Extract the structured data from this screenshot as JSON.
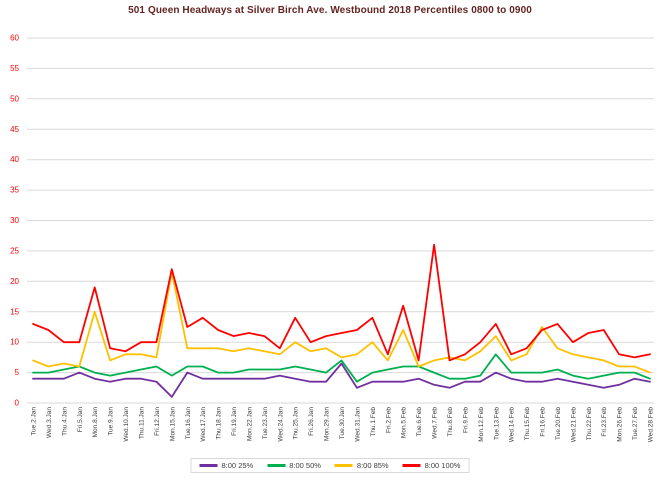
{
  "colors": {
    "title": "#632423",
    "y_axis_labels": "#ff0000",
    "x_axis_labels": "#404040",
    "gridline": "#d9d9d9",
    "background": "#ffffff"
  },
  "chart_data": {
    "type": "line",
    "title": "501 Queen Headways at Silver Birch Ave. Westbound 2018 Percentiles 0800 to 0900",
    "xlabel": "",
    "ylabel": "",
    "ylim": [
      0,
      60
    ],
    "ytick_step": 5,
    "grid": "horizontal-only",
    "legend_position": "bottom",
    "categories": [
      "Tue.2.Jan",
      "Wed.3.Jan",
      "Thu.4.Jan",
      "Fri.5.Jan",
      "Mon.8.Jan",
      "Tue.9.Jan",
      "Wed.10.Jan",
      "Thu.11.Jan",
      "Fri.12.Jan",
      "Mon.15.Jan",
      "Tue.16.Jan",
      "Wed.17.Jan",
      "Thu.18.Jan",
      "Fri.19.Jan",
      "Mon.22.Jan",
      "Tue.23.Jan",
      "Wed.24.Jan",
      "Thu.25.Jan",
      "Fri.26.Jan",
      "Mon.29.Jan",
      "Tue.30.Jan",
      "Wed.31.Jan",
      "Thu.1.Feb",
      "Fri.2.Feb",
      "Mon.5.Feb",
      "Tue.6.Feb",
      "Wed.7.Feb",
      "Thu.8.Feb",
      "Fri.9.Feb",
      "Mon.12.Feb",
      "Tue.13.Feb",
      "Wed.14.Feb",
      "Thu.15.Feb",
      "Fri.16.Feb",
      "Tue.20.Feb",
      "Wed.21.Feb",
      "Thu.22.Feb",
      "Fri.23.Feb",
      "Mon.26.Feb",
      "Tue.27.Feb",
      "Wed.28.Feb"
    ],
    "series": [
      {
        "name": "8:00 25%",
        "color": "#7030a0",
        "values": [
          4,
          4,
          4,
          5,
          4,
          3.5,
          4,
          4,
          3.5,
          1,
          5,
          4,
          4,
          4,
          4,
          4,
          4.5,
          4,
          3.5,
          3.5,
          6.5,
          2.5,
          3.5,
          3.5,
          3.5,
          4,
          3,
          2.5,
          3.5,
          3.5,
          5,
          4,
          3.5,
          3.5,
          4,
          3.5,
          3,
          2.5,
          3,
          4,
          3.5
        ]
      },
      {
        "name": "8:00 50%",
        "color": "#00b050",
        "values": [
          5,
          5,
          5.5,
          6,
          5,
          4.5,
          5,
          5.5,
          6,
          4.5,
          6,
          6,
          5,
          5,
          5.5,
          5.5,
          5.5,
          6,
          5.5,
          5,
          7,
          3.5,
          5,
          5.5,
          6,
          6,
          5,
          4,
          4,
          4.5,
          8,
          5,
          5,
          5,
          5.5,
          4.5,
          4,
          4.5,
          5,
          5,
          4
        ]
      },
      {
        "name": "8:00 85%",
        "color": "#ffc000",
        "values": [
          7,
          6,
          6.5,
          6,
          15,
          7,
          8,
          8,
          7.5,
          21.5,
          9,
          9,
          9,
          8.5,
          9,
          8.5,
          8,
          10,
          8.5,
          9,
          7.5,
          8,
          10,
          7,
          12,
          6,
          7,
          7.5,
          7,
          8.5,
          11,
          7,
          8,
          12.5,
          9,
          8,
          7.5,
          7,
          6,
          6,
          5
        ]
      },
      {
        "name": "8:00 100%",
        "color": "#ff0000",
        "values": [
          13,
          12,
          10,
          10,
          19,
          9,
          8.5,
          10,
          10,
          22,
          12.5,
          14,
          12,
          11,
          11.5,
          11,
          9,
          14,
          10,
          11,
          11.5,
          12,
          14,
          8,
          16,
          7,
          26,
          7,
          8,
          10,
          13,
          8,
          9,
          12,
          13,
          10,
          11.5,
          12,
          8,
          7.5,
          8
        ]
      }
    ]
  }
}
